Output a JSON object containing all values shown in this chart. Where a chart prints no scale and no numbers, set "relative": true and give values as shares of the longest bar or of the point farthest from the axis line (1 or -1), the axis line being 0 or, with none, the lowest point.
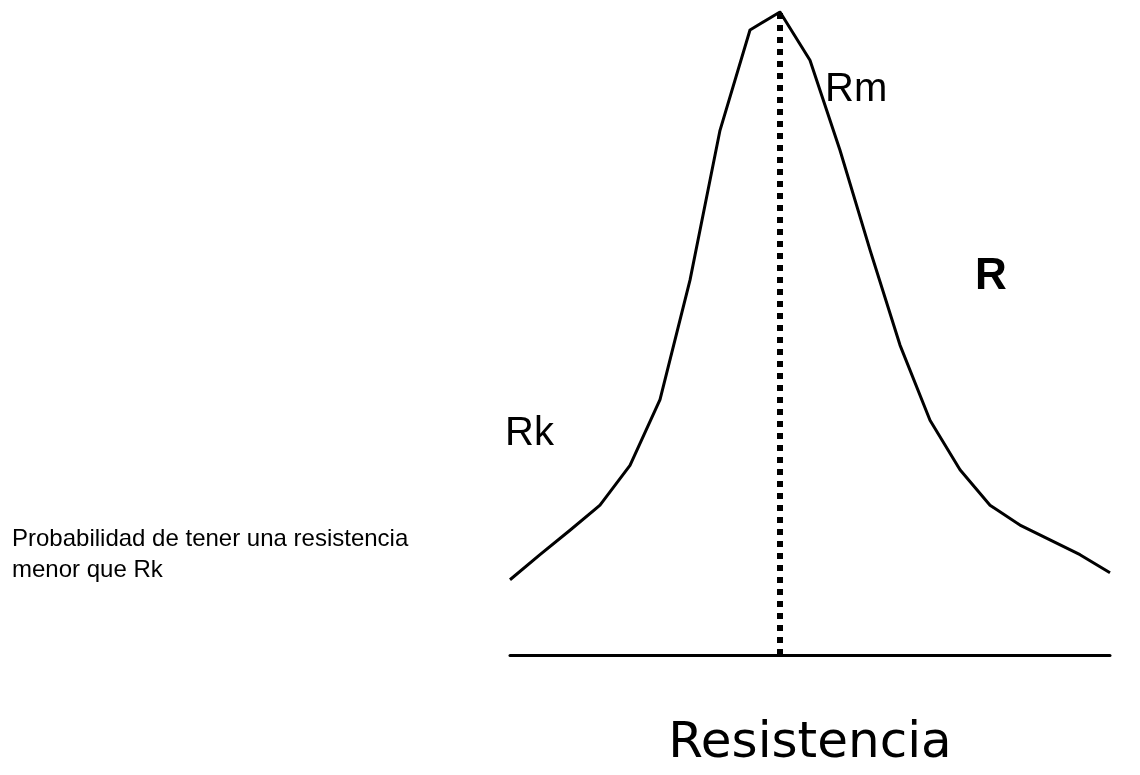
{
  "chart_data": {
    "type": "line",
    "relative": true,
    "xlabel": "Resistencia",
    "line_style": "solid",
    "marker": "none",
    "categories": [
      null,
      null,
      null,
      null,
      null,
      null,
      null,
      null,
      null,
      null,
      null,
      null,
      null,
      null,
      null,
      null,
      null,
      null,
      null,
      null,
      null
    ],
    "series": [
      {
        "color": "#000000",
        "values": [
          0.117,
          0.156,
          0.194,
          0.233,
          0.295,
          0.397,
          0.583,
          0.816,
          0.972,
          1,
          0.925,
          0.785,
          0.63,
          0.482,
          0.365,
          0.288,
          0.233,
          0.202,
          0.179,
          0.156,
          0.128
        ]
      }
    ],
    "ref_lines": [
      {
        "axis": "x",
        "label": "Rm",
        "line_style": "dotted",
        "color": "#000000"
      }
    ],
    "annotations": [
      "R",
      "Rk",
      "Probabilidad de tener una resistencia menor que Rk"
    ],
    "grid": false
  }
}
